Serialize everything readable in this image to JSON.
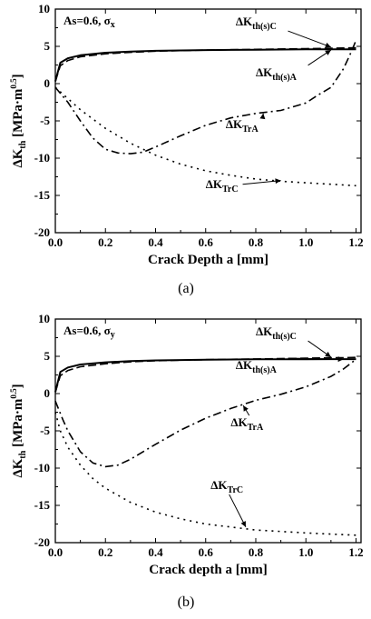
{
  "chart_data": [
    {
      "type": "line",
      "caption": "(a)",
      "xlabel": "Crack Depth a [mm]",
      "ylabel": "ΔK",
      "ylabel_sub": "th",
      "ylabel_unit": "[MPa·m",
      "ylabel_exp": "0.5",
      "ylabel_close": "]",
      "inset_text": "As=0.6, σ",
      "inset_sub": "x",
      "xlim": [
        0,
        1.22
      ],
      "ylim": [
        -20,
        10
      ],
      "xticks": [
        "0.0",
        "0.2",
        "0.4",
        "0.6",
        "0.8",
        "1.0",
        "1.2"
      ],
      "yticks": [
        "10",
        "5",
        "0",
        "-5",
        "-10",
        "-15",
        "-20"
      ],
      "series": [
        {
          "name": "ΔKth(s)C",
          "label_main": "ΔK",
          "label_sub": "th(s)C",
          "style": "dashed",
          "x": [
            0,
            0.02,
            0.05,
            0.1,
            0.2,
            0.3,
            0.4,
            0.6,
            0.8,
            1.0,
            1.1,
            1.15,
            1.2
          ],
          "y": [
            0.3,
            2.4,
            3.1,
            3.6,
            4.0,
            4.2,
            4.35,
            4.5,
            4.6,
            4.7,
            4.75,
            4.78,
            4.8
          ]
        },
        {
          "name": "ΔKth(s)A",
          "label_main": "ΔK",
          "label_sub": "th(s)A",
          "style": "solid",
          "x": [
            0,
            0.02,
            0.05,
            0.1,
            0.2,
            0.3,
            0.4,
            0.6,
            0.8,
            1.0,
            1.1,
            1.15,
            1.2
          ],
          "y": [
            0.3,
            2.8,
            3.4,
            3.8,
            4.15,
            4.3,
            4.4,
            4.5,
            4.55,
            4.6,
            4.6,
            4.6,
            4.6
          ]
        },
        {
          "name": "ΔKTrA",
          "label_main": "ΔK",
          "label_sub": "TrA",
          "style": "dashdot",
          "x": [
            0,
            0.05,
            0.1,
            0.15,
            0.2,
            0.25,
            0.3,
            0.35,
            0.4,
            0.5,
            0.6,
            0.7,
            0.8,
            0.9,
            1.0,
            1.05,
            1.1,
            1.15,
            1.18,
            1.2
          ],
          "y": [
            -0.5,
            -2.5,
            -5.0,
            -7.3,
            -8.8,
            -9.3,
            -9.4,
            -9.2,
            -8.5,
            -7.0,
            -5.6,
            -4.6,
            -4.0,
            -3.6,
            -2.6,
            -1.5,
            -0.5,
            2.0,
            4.2,
            5.8
          ]
        },
        {
          "name": "ΔKTrC",
          "label_main": "ΔK",
          "label_sub": "TrC",
          "style": "dotted",
          "x": [
            0,
            0.1,
            0.2,
            0.3,
            0.4,
            0.5,
            0.6,
            0.7,
            0.8,
            0.9,
            1.0,
            1.1,
            1.2
          ],
          "y": [
            -0.5,
            -3.5,
            -6.0,
            -8.0,
            -9.6,
            -10.8,
            -11.7,
            -12.3,
            -12.8,
            -13.1,
            -13.3,
            -13.5,
            -13.7
          ]
        }
      ],
      "annotations": [
        {
          "series": 0,
          "tx": 0.72,
          "ty": 7.8,
          "ax": 1.1,
          "ay": 4.9
        },
        {
          "series": 1,
          "tx": 0.8,
          "ty": 1.0,
          "ax": 1.1,
          "ay": 4.5
        },
        {
          "series": 2,
          "tx": 0.68,
          "ty": -6.0,
          "ax": 0.83,
          "ay": -4.0
        },
        {
          "series": 3,
          "tx": 0.6,
          "ty": -14.0,
          "ax": 0.9,
          "ay": -13.0
        }
      ]
    },
    {
      "type": "line",
      "caption": "(b)",
      "xlabel": "Crack depth a [mm]",
      "ylabel": "ΔK",
      "ylabel_sub": "th",
      "ylabel_unit": "[MPa·m",
      "ylabel_exp": "0.5",
      "ylabel_close": "]",
      "inset_text": "As=0.6, σ",
      "inset_sub": "y",
      "xlim": [
        0,
        1.22
      ],
      "ylim": [
        -20,
        10
      ],
      "xticks": [
        "0.0",
        "0.2",
        "0.4",
        "0.6",
        "0.8",
        "1.0",
        "1.2"
      ],
      "yticks": [
        "10",
        "5",
        "0",
        "-5",
        "-10",
        "-15",
        "-20"
      ],
      "series": [
        {
          "name": "ΔKth(s)C",
          "label_main": "ΔK",
          "label_sub": "th(s)C",
          "style": "dashed",
          "x": [
            0,
            0.02,
            0.05,
            0.1,
            0.2,
            0.3,
            0.4,
            0.6,
            0.8,
            1.0,
            1.1,
            1.15,
            1.2
          ],
          "y": [
            0.2,
            2.4,
            3.1,
            3.6,
            4.0,
            4.25,
            4.4,
            4.55,
            4.65,
            4.75,
            4.8,
            4.82,
            4.85
          ]
        },
        {
          "name": "ΔKth(s)A",
          "label_main": "ΔK",
          "label_sub": "th(s)A",
          "style": "solid",
          "x": [
            0,
            0.02,
            0.05,
            0.1,
            0.2,
            0.3,
            0.4,
            0.6,
            0.8,
            1.0,
            1.1,
            1.15,
            1.2
          ],
          "y": [
            0.2,
            2.9,
            3.5,
            3.9,
            4.2,
            4.35,
            4.45,
            4.55,
            4.6,
            4.6,
            4.62,
            4.62,
            4.62
          ]
        },
        {
          "name": "ΔKTrA",
          "label_main": "ΔK",
          "label_sub": "TrA",
          "style": "dashdot",
          "x": [
            0,
            0.03,
            0.05,
            0.1,
            0.15,
            0.2,
            0.25,
            0.3,
            0.4,
            0.5,
            0.6,
            0.7,
            0.8,
            0.9,
            1.0,
            1.1,
            1.15,
            1.2
          ],
          "y": [
            -1.0,
            -3.5,
            -5.0,
            -7.8,
            -9.3,
            -9.8,
            -9.6,
            -8.8,
            -6.8,
            -4.9,
            -3.3,
            -2.0,
            -0.9,
            -0.1,
            0.9,
            2.3,
            3.3,
            4.6
          ]
        },
        {
          "name": "ΔKTrC",
          "label_main": "ΔK",
          "label_sub": "TrC",
          "style": "dotted",
          "x": [
            0,
            0.02,
            0.05,
            0.1,
            0.15,
            0.2,
            0.3,
            0.4,
            0.5,
            0.6,
            0.7,
            0.8,
            0.9,
            1.0,
            1.1,
            1.2
          ],
          "y": [
            -2.5,
            -5.0,
            -7.2,
            -9.6,
            -11.4,
            -12.7,
            -14.6,
            -15.9,
            -16.8,
            -17.5,
            -17.9,
            -18.3,
            -18.5,
            -18.7,
            -18.85,
            -19.0
          ]
        }
      ],
      "annotations": [
        {
          "series": 0,
          "tx": 0.8,
          "ty": 7.8,
          "ax": 1.1,
          "ay": 4.9
        },
        {
          "series": 1,
          "tx": 0.72,
          "ty": 3.3,
          "ax": 1.15,
          "ay": 4.6
        },
        {
          "series": 2,
          "tx": 0.7,
          "ty": -4.4,
          "ax": 0.75,
          "ay": -1.6
        },
        {
          "series": 3,
          "tx": 0.62,
          "ty": -12.8,
          "ax": 0.76,
          "ay": -17.9
        }
      ]
    }
  ]
}
